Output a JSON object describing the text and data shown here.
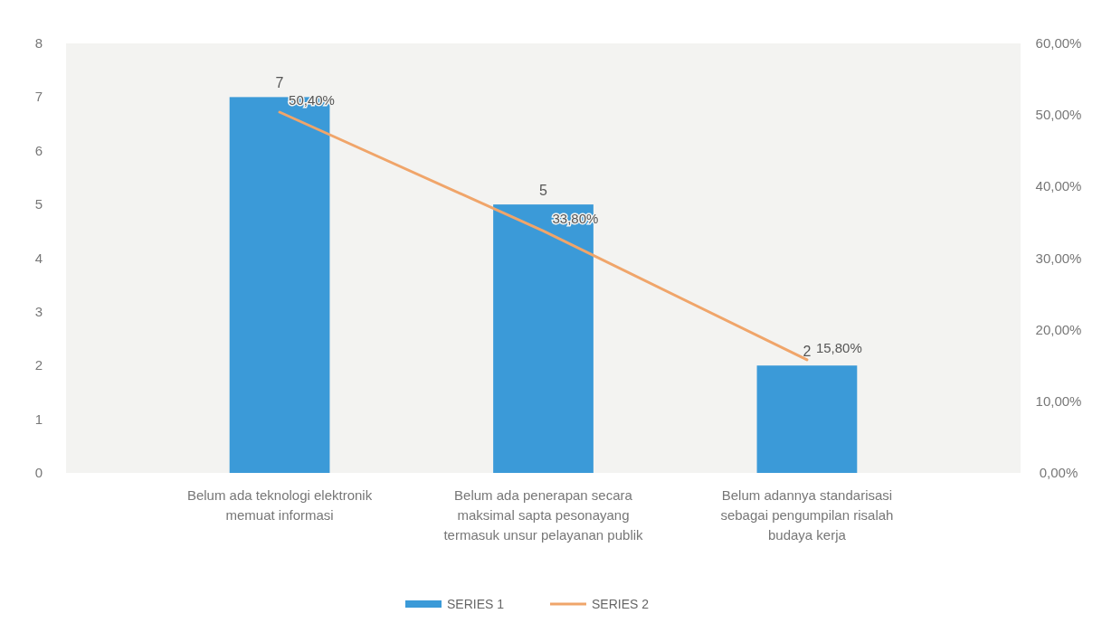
{
  "chart_data": {
    "type": "bar",
    "categories": [
      "Belum ada teknologi elektronik memuat informasi",
      "Belum ada penerapan secara maksimal sapta pesonayang termasuk unsur pelayanan publik",
      "Belum adannya standarisasi sebagai pengumpilan risalah budaya kerja"
    ],
    "series": [
      {
        "name": "SERIES 1",
        "color": "#3b9ad8",
        "values": [
          7,
          5,
          2
        ],
        "value_labels": [
          "7",
          "5",
          "2"
        ]
      },
      {
        "name": "SERIES 2",
        "type": "line",
        "axis": "y2",
        "color": "#f0a56a",
        "values": [
          50.4,
          33.8,
          15.8
        ],
        "value_labels": [
          "50,40%",
          "33,80%",
          "15,80%"
        ]
      }
    ],
    "ylim": [
      0,
      8
    ],
    "yticks": [
      0,
      1,
      2,
      3,
      4,
      5,
      6,
      7,
      8
    ],
    "y2lim": [
      0,
      60
    ],
    "y2ticks": [
      {
        "value": 0,
        "label": "0,00%"
      },
      {
        "value": 10,
        "label": "10,00%"
      },
      {
        "value": 20,
        "label": "20,00%"
      },
      {
        "value": 30,
        "label": "30,00%"
      },
      {
        "value": 40,
        "label": "40,00%"
      },
      {
        "value": 50,
        "label": "50,00%"
      },
      {
        "value": 60,
        "label": "60,00%"
      }
    ],
    "legend": "bottom",
    "grid": false
  }
}
